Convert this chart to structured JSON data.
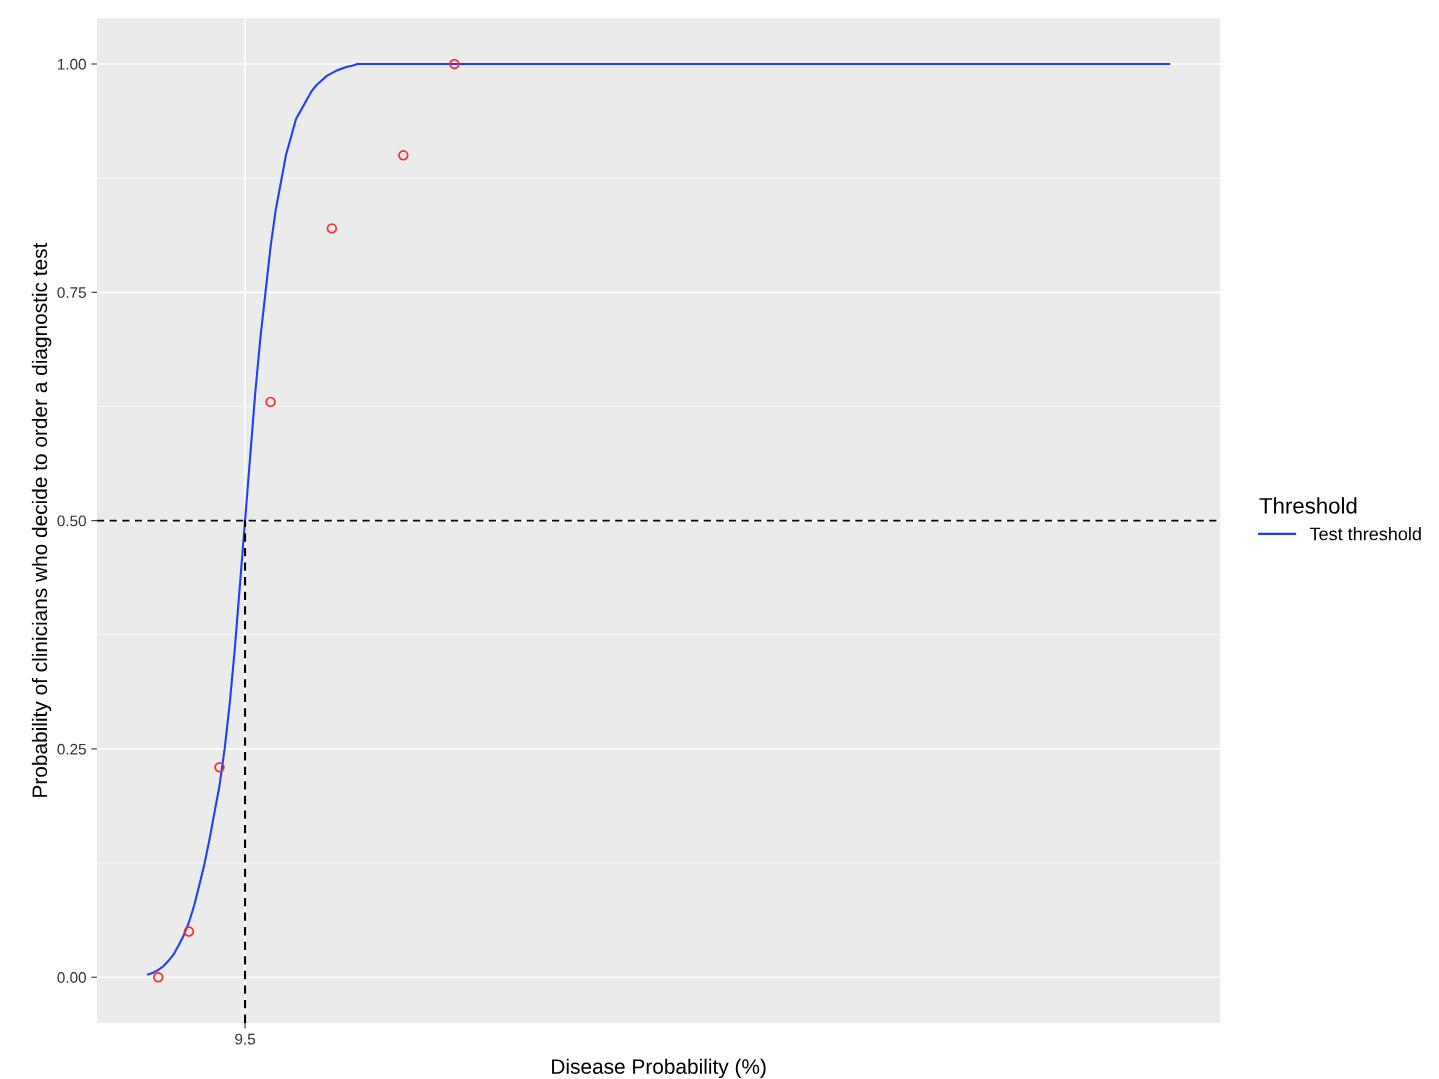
{
  "chart_data": {
    "type": "scatter",
    "xlabel": "Disease Probability (%)",
    "ylabel": "Probability of clinicians who decide to order a diagnostic test",
    "legend_title": "Threshold",
    "legend": "right",
    "grid": true,
    "ylim": [
      -0.05,
      1.05
    ],
    "yticks": [
      {
        "value": 0,
        "label": "0.00"
      },
      {
        "value": 0.25,
        "label": "0.25"
      },
      {
        "value": 0.5,
        "label": "0.50"
      },
      {
        "value": 0.75,
        "label": "0.75"
      },
      {
        "value": 1,
        "label": "1.00"
      }
    ],
    "categories": [
      null,
      null,
      null,
      null,
      null,
      null,
      null,
      null,
      null,
      null,
      null,
      null,
      null,
      null,
      null,
      null,
      null,
      null,
      null,
      "9.5",
      null,
      null,
      null,
      null,
      null,
      null,
      null,
      null,
      null,
      null,
      null,
      null,
      null,
      null,
      null,
      null,
      null,
      null,
      null,
      null,
      null,
      null,
      null,
      null,
      null,
      null,
      null,
      null,
      null,
      null,
      null,
      null,
      null,
      null,
      null,
      null,
      null,
      null,
      null,
      null,
      null,
      null,
      null,
      null,
      null,
      null,
      null,
      null,
      null,
      null,
      null,
      null,
      null,
      null,
      null,
      null,
      null,
      null,
      null,
      null,
      null,
      null,
      null,
      null,
      null,
      null,
      null,
      null,
      null,
      null,
      null,
      null,
      null,
      null,
      null,
      null,
      null,
      null,
      null,
      null,
      null,
      null,
      null,
      null,
      null,
      null,
      null,
      null,
      null,
      null,
      null,
      null,
      null,
      null,
      null,
      null,
      null,
      null,
      null,
      null,
      null,
      null,
      null,
      null,
      null,
      null,
      null,
      null,
      null,
      null,
      null,
      null,
      null,
      null,
      null,
      null,
      null,
      null,
      null,
      null,
      null,
      null,
      null,
      null,
      null,
      null,
      null,
      null,
      null,
      null,
      null,
      null,
      null,
      null,
      null,
      null,
      null,
      null,
      null,
      null,
      null,
      null,
      null,
      null,
      null,
      null,
      null,
      null,
      null,
      null,
      null,
      null,
      null,
      null,
      null,
      null,
      null,
      null,
      null,
      null,
      null,
      null,
      null,
      null,
      null,
      null,
      null,
      null,
      null,
      null,
      null,
      null,
      null,
      null,
      null,
      null,
      null,
      null,
      null,
      null,
      null
    ],
    "ref_lines": [
      {
        "axis": "y",
        "value": 0.5,
        "color": "#000000",
        "line_style": "dashed"
      }
    ],
    "series": [
      {
        "name": "Test threshold",
        "type": "line",
        "color": "#1f3dff",
        "line_style": "solid",
        "marker": "none",
        "values": [
          0.003,
          0.005,
          0.008,
          0.012,
          0.018,
          0.025,
          0.035,
          0.046,
          0.06,
          0.078,
          0.1,
          0.123,
          0.15,
          0.18,
          0.21,
          0.25,
          0.3,
          0.36,
          0.43,
          0.5,
          0.57,
          0.64,
          0.7,
          0.75,
          0.8,
          0.84,
          0.87,
          0.9,
          0.92,
          0.94,
          0.95,
          0.96,
          0.97,
          0.977,
          0.982,
          0.987,
          0.99,
          0.993,
          0.995,
          0.997,
          0.998,
          1,
          1,
          1,
          1,
          1,
          1,
          1,
          1,
          1,
          1,
          1,
          1,
          1,
          1,
          1,
          1,
          1,
          1,
          1,
          1,
          1,
          1,
          1,
          1,
          1,
          1,
          1,
          1,
          1,
          1,
          1,
          1,
          1,
          1,
          1,
          1,
          1,
          1,
          1,
          1,
          1,
          1,
          1,
          1,
          1,
          1,
          1,
          1,
          1,
          1,
          1,
          1,
          1,
          1,
          1,
          1,
          1,
          1,
          1,
          1,
          1,
          1,
          1,
          1,
          1,
          1,
          1,
          1,
          1,
          1,
          1,
          1,
          1,
          1,
          1,
          1,
          1,
          1,
          1,
          1,
          1,
          1,
          1,
          1,
          1,
          1,
          1,
          1,
          1,
          1,
          1,
          1,
          1,
          1,
          1,
          1,
          1,
          1,
          1,
          1,
          1,
          1,
          1,
          1,
          1,
          1,
          1,
          1,
          1,
          1,
          1,
          1,
          1,
          1,
          1,
          1,
          1,
          1,
          1,
          1,
          1,
          1,
          1,
          1,
          1,
          1,
          1,
          1,
          1,
          1,
          1,
          1,
          1,
          1,
          1,
          1,
          1,
          1,
          1,
          1,
          1,
          1,
          1,
          1,
          1,
          1,
          1,
          1,
          1,
          1,
          1,
          1,
          1,
          1,
          1,
          1,
          1,
          1,
          1,
          1
        ]
      },
      {
        "color": "#ff2a2a",
        "marker": "circle",
        "values": [
          null,
          null,
          0,
          null,
          null,
          null,
          null,
          null,
          0.05,
          null,
          null,
          null,
          null,
          null,
          0.23,
          null,
          null,
          null,
          null,
          null,
          null,
          null,
          null,
          null,
          0.63,
          null,
          null,
          null,
          null,
          null,
          null,
          null,
          null,
          null,
          null,
          null,
          0.82,
          null,
          null,
          null,
          null,
          null,
          null,
          null,
          null,
          null,
          null,
          null,
          null,
          null,
          0.9,
          null,
          null,
          null,
          null,
          null,
          null,
          null,
          null,
          null,
          1,
          null,
          null,
          null,
          null,
          null,
          null,
          null,
          null,
          null,
          null,
          null,
          null,
          null,
          null,
          null,
          null,
          null,
          null,
          null,
          null,
          null,
          null,
          null,
          null,
          null,
          null,
          null,
          null,
          null,
          null,
          null,
          null,
          null,
          null,
          null,
          null,
          null,
          null,
          null,
          null,
          null,
          null,
          null,
          null,
          null,
          null,
          null,
          null,
          null,
          null,
          null,
          null,
          null,
          null,
          null,
          null,
          null,
          null,
          null,
          null,
          null,
          null,
          null,
          null,
          null,
          null,
          null,
          null,
          null,
          null,
          null,
          null,
          null,
          null,
          null,
          null,
          null,
          null,
          null,
          null,
          null,
          null,
          null,
          null,
          null,
          null,
          null,
          null,
          null,
          null,
          null,
          null,
          null,
          null,
          null,
          null,
          null,
          null,
          null,
          null,
          null,
          null,
          null,
          null,
          null,
          null,
          null,
          null,
          null,
          null,
          null,
          null,
          null,
          null,
          null,
          null,
          null,
          null,
          null,
          null,
          null,
          null,
          null,
          null,
          null,
          null,
          null,
          null,
          null,
          null,
          null,
          null,
          null,
          null,
          null,
          null,
          null,
          null,
          null,
          null
        ]
      },
      {
        "type": "line",
        "color": "#000000",
        "line_style": "dashed",
        "marker": "none",
        "x": [
          "9.5",
          "9.5"
        ],
        "values": [
          -0.05,
          0.5
        ]
      }
    ]
  }
}
